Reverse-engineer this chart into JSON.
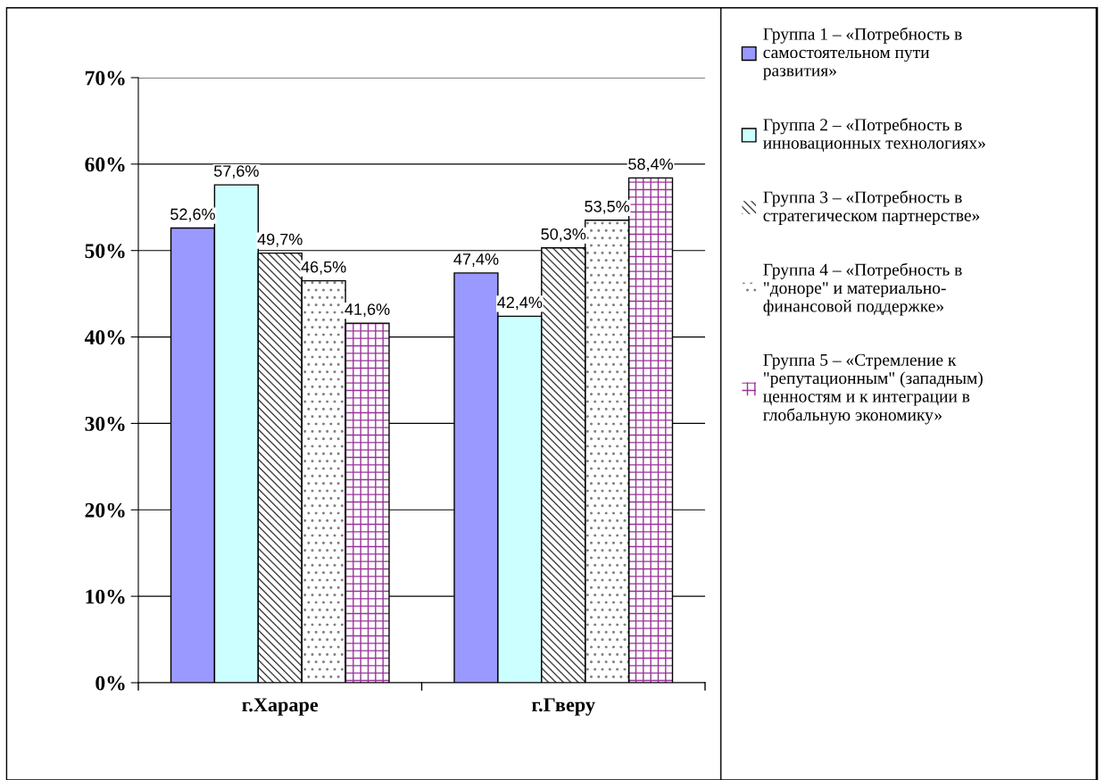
{
  "chart_data": {
    "type": "bar",
    "categories": [
      "г.Хараре",
      "г.Гверу"
    ],
    "series": [
      {
        "name": "Группа 1 – «Потребность в\nсамостоятельном пути\nразвития»",
        "color": "#9999ff",
        "values": [
          52.6,
          47.4
        ],
        "value_labels": [
          "52,6%",
          "47,4%"
        ]
      },
      {
        "name": "Группа 2 – «Потребность в\nинновационных технологиях»",
        "color": "#ccffff",
        "values": [
          57.6,
          42.4
        ],
        "value_labels": [
          "57,6%",
          "42,4%"
        ]
      },
      {
        "name": "Группа 3 – «Потребность в\nстратегическом партнерстве»",
        "color": "#404040",
        "values": [
          49.7,
          50.3
        ],
        "value_labels": [
          "49,7%",
          "50,3%"
        ]
      },
      {
        "name": "Группа 4 – «Потребность в\n\"доноре\" и материально-\nфинансовой поддержке»",
        "color": "#808080",
        "values": [
          46.5,
          53.5
        ],
        "value_labels": [
          "46,5%",
          "53,5%"
        ]
      },
      {
        "name": "Группа 5 – «Стремление к\n\"репутационным\" (западным)\nценностям и к интеграции в\nглобальную экономику»",
        "color": "#993399",
        "values": [
          41.6,
          58.4
        ],
        "value_labels": [
          "41,6%",
          "58,4%"
        ]
      }
    ],
    "ylim": [
      0,
      70
    ],
    "yticks": [
      {
        "value": 0,
        "label": "0%"
      },
      {
        "value": 10,
        "label": "10%"
      },
      {
        "value": 20,
        "label": "20%"
      },
      {
        "value": 30,
        "label": "30%"
      },
      {
        "value": 40,
        "label": "40%"
      },
      {
        "value": 50,
        "label": "50%"
      },
      {
        "value": 60,
        "label": "60%"
      },
      {
        "value": 70,
        "label": "70%"
      }
    ],
    "grid": "y",
    "legend": "right"
  }
}
